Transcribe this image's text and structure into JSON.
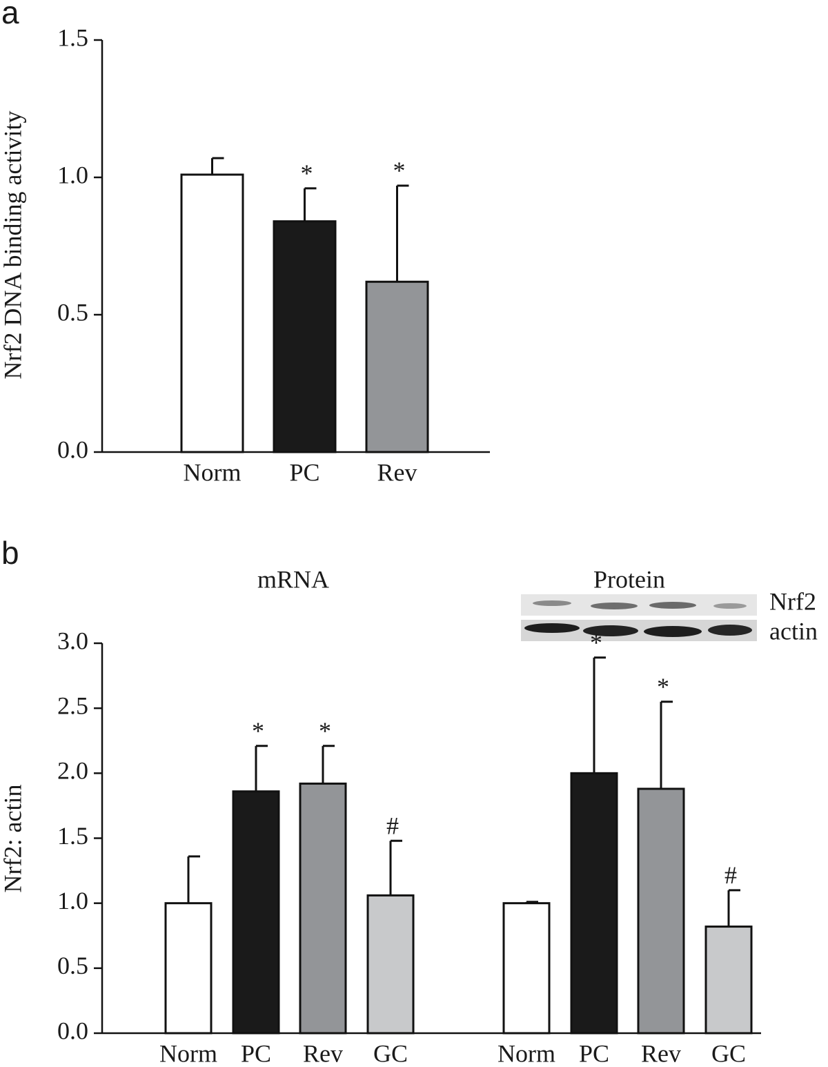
{
  "chart_data": [
    {
      "panel": "a",
      "type": "bar",
      "ylabel": "Nrf2 DNA binding activity",
      "categories": [
        "Norm",
        "PC",
        "Rev"
      ],
      "colors": [
        "#ffffff",
        "#1a1a1a",
        "#939598"
      ],
      "ylim": [
        0,
        1.5
      ],
      "yticks": [
        {
          "value": 0,
          "label": "0.0"
        },
        0.5,
        {
          "value": 1,
          "label": "1.0"
        },
        1.5
      ],
      "groups": [
        {
          "values": [
            1.01,
            0.84,
            0.62
          ],
          "errors": [
            0.06,
            0.12,
            0.35
          ],
          "annotations": [
            null,
            "*",
            "*"
          ]
        }
      ]
    },
    {
      "panel": "b",
      "type": "bar",
      "ylabel": "Nrf2: actin",
      "categories": [
        "Norm",
        "PC",
        "Rev",
        "GC"
      ],
      "colors": [
        "#ffffff",
        "#1a1a1a",
        "#939598",
        "#c8c9cb"
      ],
      "ylim": [
        0,
        3
      ],
      "yticks": [
        {
          "value": 0,
          "label": "0.0"
        },
        0.5,
        {
          "value": 1,
          "label": "1.0"
        },
        1.5,
        {
          "value": 2,
          "label": "2.0"
        },
        2.5,
        {
          "value": 3,
          "label": "3.0"
        }
      ],
      "blot_labels": [
        "Nrf2",
        "actin"
      ],
      "groups": [
        {
          "name": "mRNA",
          "values": [
            1.0,
            1.86,
            1.92,
            1.06
          ],
          "errors": [
            0.36,
            0.35,
            0.29,
            0.42
          ],
          "annotations": [
            null,
            "*",
            "*",
            "#"
          ]
        },
        {
          "name": "Protein",
          "values": [
            1.0,
            2.0,
            1.88,
            0.82
          ],
          "errors": [
            0.01,
            0.89,
            0.67,
            0.28
          ],
          "annotations": [
            null,
            "*",
            "*",
            "#"
          ]
        }
      ]
    }
  ]
}
